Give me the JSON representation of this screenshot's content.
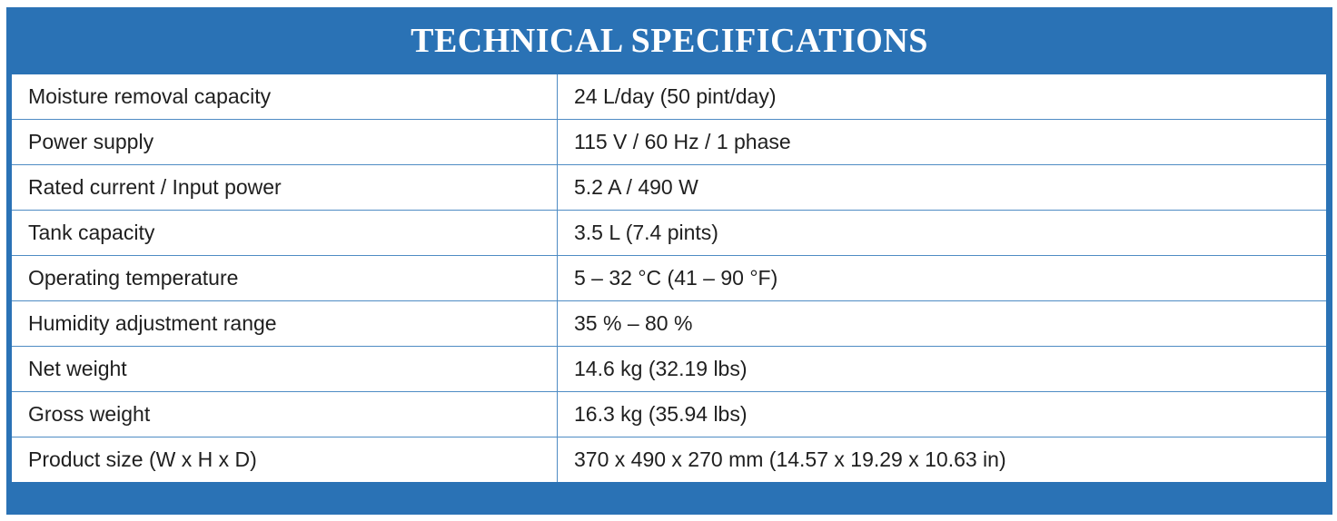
{
  "title": "TECHNICAL SPECIFICATIONS",
  "colors": {
    "frame": "#2a72b5",
    "row_divider": "#4f8cc4",
    "text": "#1f1f1f",
    "title_text": "#ffffff"
  },
  "rows": [
    {
      "label": "Moisture removal capacity",
      "value": "24 L/day (50 pint/day)"
    },
    {
      "label": "Power supply",
      "value": "115 V / 60 Hz / 1 phase"
    },
    {
      "label": "Rated current / Input power",
      "value": "5.2 A / 490 W"
    },
    {
      "label": "Tank capacity",
      "value": "3.5 L (7.4 pints)"
    },
    {
      "label": "Operating temperature",
      "value": "5 – 32 °C (41 – 90 °F)"
    },
    {
      "label": "Humidity adjustment range",
      "value": "35 % – 80 %"
    },
    {
      "label": "Net weight",
      "value": "14.6 kg (32.19 lbs)"
    },
    {
      "label": "Gross weight",
      "value": "16.3 kg (35.94 lbs)"
    },
    {
      "label": "Product size (W x H x D)",
      "value": "370 x 490 x 270 mm (14.57 x 19.29 x 10.63 in)"
    }
  ]
}
